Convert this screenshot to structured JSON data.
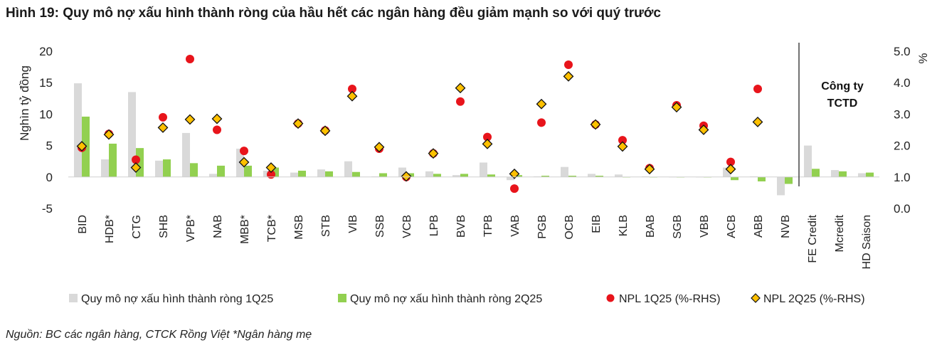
{
  "title": "Hình 19: Quy mô nợ xấu hình thành ròng của hầu hết các ngân hàng đều giảm mạnh so với quý trước",
  "source": "Nguồn: BC các ngân hàng, CTCK Rồng Việt *Ngân hàng mẹ",
  "colors": {
    "q1_bar": "#d9d9d9",
    "q2_bar": "#92d050",
    "npl_q1": "#e8141b",
    "npl_q2_fill": "#ffc000",
    "npl_q2_edge": "#111111",
    "divider": "#444444"
  },
  "chart_data": {
    "type": "bar",
    "ylabel": "Nghìn tỷ đồng",
    "y2label": "%",
    "ylim": [
      -5,
      20
    ],
    "y2lim": [
      0.0,
      5.0
    ],
    "yticks": [
      "20",
      "15",
      "10",
      "5",
      "0",
      "-5"
    ],
    "y2ticks": [
      "5.0",
      "4.0",
      "3.0",
      "2.0",
      "1.0",
      "0.0"
    ],
    "annotation": [
      "Công ty",
      "TCTD"
    ],
    "categories": [
      "BID",
      "HDB*",
      "CTG",
      "SHB",
      "VPB*",
      "NAB",
      "MBB*",
      "TCB*",
      "MSB",
      "STB",
      "VIB",
      "SSB",
      "VCB",
      "LPB",
      "BVB",
      "TPB",
      "VAB",
      "PGB",
      "OCB",
      "EIB",
      "KLB",
      "BAB",
      "SGB",
      "VBB",
      "ACB",
      "ABB",
      "NVB",
      "FE Credit",
      "Mcredit",
      "HD Saison"
    ],
    "series": [
      {
        "name": "Quy mô nợ xấu hình thành ròng 1Q25",
        "kind": "bar",
        "axis": "left",
        "values": [
          14.9,
          2.8,
          13.5,
          2.6,
          7.0,
          0.5,
          4.5,
          1.0,
          0.7,
          1.2,
          2.5,
          0.1,
          1.5,
          0.9,
          0.3,
          2.3,
          -0.5,
          0.1,
          1.6,
          0.5,
          0.4,
          0.1,
          0.0,
          0.0,
          1.5,
          0.1,
          -2.9,
          5.0,
          1.1,
          0.6
        ]
      },
      {
        "name": "Quy mô nợ xấu hình thành ròng 2Q25",
        "kind": "bar",
        "axis": "left",
        "values": [
          9.6,
          5.3,
          4.6,
          2.8,
          2.2,
          1.8,
          1.8,
          1.5,
          1.0,
          0.9,
          0.8,
          0.6,
          0.6,
          0.5,
          0.5,
          0.4,
          0.3,
          0.2,
          0.2,
          0.2,
          0.0,
          0.0,
          0.0,
          0.0,
          -0.5,
          -0.7,
          -1.1,
          1.3,
          0.9,
          0.7
        ]
      },
      {
        "name": "NPL 1Q25 (%-RHS)",
        "kind": "point",
        "axis": "right",
        "values": [
          1.93,
          2.37,
          1.55,
          2.9,
          4.75,
          2.5,
          1.83,
          1.08,
          2.7,
          2.48,
          3.8,
          1.9,
          1.0,
          1.75,
          3.4,
          2.27,
          0.63,
          2.73,
          4.57,
          2.67,
          2.17,
          1.28,
          3.28,
          2.63,
          1.48,
          3.8,
          null,
          null,
          null,
          null
        ]
      },
      {
        "name": "NPL 2Q25 (%-RHS)",
        "kind": "point",
        "axis": "right",
        "values": [
          1.98,
          2.35,
          1.3,
          2.57,
          2.83,
          2.85,
          1.47,
          1.3,
          2.7,
          2.47,
          3.57,
          1.95,
          1.02,
          1.75,
          3.83,
          2.05,
          1.1,
          3.32,
          4.2,
          2.67,
          1.97,
          1.25,
          3.22,
          2.5,
          1.25,
          2.75,
          null,
          null,
          null,
          null
        ]
      }
    ],
    "legend_position": "bottom"
  }
}
